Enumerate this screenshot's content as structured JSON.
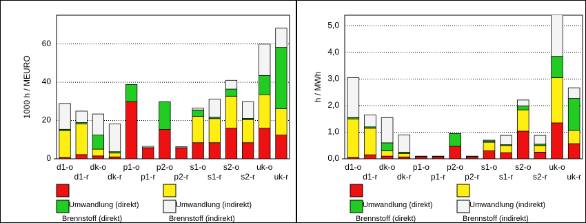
{
  "chart_data": [
    {
      "type": "stacked-bar",
      "y_label": "1000 h / MEURO",
      "categories": [
        "d1-o",
        "d1-r",
        "dk-o",
        "dk-r",
        "p1-o",
        "p1-r",
        "p2-o",
        "p2-r",
        "s1-o",
        "s1-r",
        "s2-o",
        "s2-r",
        "uk-o",
        "uk-r"
      ],
      "series": [
        {
          "name": "Umwandlung (direkt)",
          "color": "#ee1111",
          "values": [
            0.7,
            2.2,
            1.5,
            1,
            29.8,
            5.8,
            15.3,
            5.8,
            8.4,
            8.4,
            16,
            8.4,
            16,
            12.4
          ]
        },
        {
          "name": "Umwandlung (indirekt)",
          "color": "#ffee11",
          "values": [
            14,
            16,
            3.5,
            2,
            0,
            0,
            0,
            0,
            13.8,
            12.6,
            16.7,
            12,
            17.5,
            13.8
          ]
        },
        {
          "name": "Brennstoff (direkt)",
          "color": "#22cc22",
          "values": [
            0.7,
            0.7,
            7.4,
            0.7,
            9,
            0,
            14.5,
            0,
            3.3,
            0.7,
            3.7,
            0.7,
            10,
            32
          ]
        },
        {
          "name": "Brennstoff (indirekt)",
          "color": "#f4f4f4",
          "values": [
            13.5,
            6,
            11,
            14.5,
            0,
            0.7,
            0,
            0.5,
            1,
            9.5,
            4.6,
            8.7,
            16.4,
            10
          ]
        }
      ],
      "ylim": [
        0,
        75
      ],
      "yticks": [
        0,
        20,
        40,
        60
      ],
      "grid": true
    },
    {
      "type": "stacked-bar",
      "y_label": "h / MWh",
      "categories": [
        "d1-o",
        "d1-r",
        "dk-o",
        "dk-r",
        "p1-o",
        "p1-r",
        "p2-o",
        "p2-r",
        "s1-o",
        "s1-r",
        "s2-o",
        "s2-r",
        "uk-o",
        "uk-r"
      ],
      "series": [
        {
          "name": "Umwandlung (direkt)",
          "color": "#ee1111",
          "values": [
            0.05,
            0.15,
            0.1,
            0.07,
            0.08,
            0.08,
            0.47,
            0.08,
            0.3,
            0.23,
            1.04,
            0.25,
            1.35,
            0.57
          ]
        },
        {
          "name": "Umwandlung (indirekt)",
          "color": "#ffee11",
          "values": [
            1.45,
            1.0,
            0.2,
            0.13,
            0,
            0,
            0,
            0,
            0.32,
            0.27,
            0.8,
            0.25,
            1.7,
            0.5
          ]
        },
        {
          "name": "Brennstoff (direkt)",
          "color": "#22cc22",
          "values": [
            0.05,
            0.05,
            0.3,
            0.05,
            0.02,
            0,
            0.48,
            0,
            0.05,
            0.03,
            0.15,
            0.05,
            0.8,
            1.2
          ]
        },
        {
          "name": "Brennstoff (indirekt)",
          "color": "#f4f4f4",
          "values": [
            1.5,
            0.45,
            0.95,
            0.65,
            0,
            0.02,
            0,
            0.02,
            0.03,
            0.35,
            0.22,
            0.33,
            1.6,
            0.4
          ]
        }
      ],
      "ylim": [
        0,
        5.4
      ],
      "yticks": [
        {
          "value": 0,
          "label": "0,0"
        },
        {
          "value": 1,
          "label": "1,0"
        },
        {
          "value": 2,
          "label": "2,0"
        },
        {
          "value": 3,
          "label": "3,0"
        },
        {
          "value": 4,
          "label": "4,0"
        },
        {
          "value": 5,
          "label": "5,0"
        }
      ],
      "grid": true
    }
  ]
}
